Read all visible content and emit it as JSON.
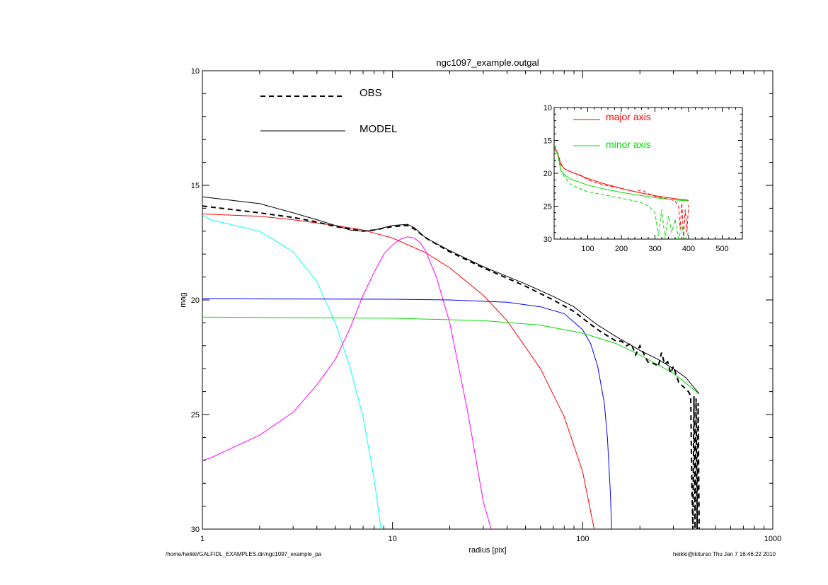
{
  "chart_data": [
    {
      "type": "line",
      "title": "ngc1097_example.outgal",
      "xlabel": "radius [pix]",
      "ylabel": "mag",
      "x_scale": "log",
      "xlim": [
        1,
        1000
      ],
      "ylim": [
        30,
        10
      ],
      "y_inverted": true,
      "x_ticks": [
        1,
        10,
        100,
        1000
      ],
      "x_tick_labels": [
        "1",
        "10",
        "100",
        "1000"
      ],
      "y_ticks": [
        10,
        15,
        20,
        25,
        30
      ],
      "y_tick_labels": [
        "10",
        "15",
        "20",
        "25",
        "30"
      ],
      "legend_position": "top-left",
      "colors": {
        "obs": "#000000",
        "model": "#000000",
        "red": "#ff0000",
        "cyan": "#00ffff",
        "magenta": "#ff00ff",
        "blue": "#0000ff",
        "green": "#00dd00"
      },
      "series": [
        {
          "name": "OBS",
          "style": "dashed",
          "color": "#000000",
          "width": 2,
          "x": [
            1,
            2,
            3,
            4,
            5,
            6,
            7,
            8,
            10,
            12,
            13,
            15,
            20,
            30,
            50,
            70,
            90,
            100,
            120,
            150,
            160,
            170,
            180,
            190,
            200,
            220,
            240,
            250,
            260,
            270,
            280,
            290,
            300,
            320,
            340,
            360,
            370,
            375,
            380,
            385,
            390,
            395,
            400,
            405,
            410
          ],
          "y": [
            15.9,
            16.2,
            16.4,
            16.6,
            16.8,
            16.9,
            17.0,
            16.95,
            16.8,
            16.75,
            16.9,
            17.3,
            17.9,
            18.6,
            19.4,
            20.0,
            20.5,
            20.8,
            21.3,
            21.8,
            21.8,
            22.0,
            21.9,
            22.4,
            22.0,
            22.7,
            22.8,
            22.9,
            22.3,
            22.8,
            22.7,
            23.2,
            22.9,
            23.6,
            23.8,
            24.0,
            24.2,
            28.0,
            30.0,
            24.2,
            30.0,
            24.3,
            30.0,
            24.5,
            30.0
          ]
        },
        {
          "name": "MODEL",
          "style": "solid",
          "color": "#000000",
          "width": 1,
          "x": [
            1,
            2,
            3,
            4,
            5,
            6,
            7,
            8,
            10,
            12,
            13,
            15,
            20,
            30,
            50,
            70,
            90,
            100,
            120,
            150,
            200,
            250,
            300,
            350,
            410
          ],
          "y": [
            15.5,
            15.8,
            16.2,
            16.5,
            16.75,
            16.95,
            17.0,
            16.95,
            16.75,
            16.7,
            16.85,
            17.3,
            17.85,
            18.55,
            19.3,
            19.85,
            20.3,
            20.6,
            21.1,
            21.6,
            22.2,
            22.6,
            23.0,
            23.4,
            24.1
          ]
        },
        {
          "style": "solid",
          "color": "#ff0000",
          "width": 1,
          "x": [
            1,
            2,
            3,
            5,
            7,
            10,
            15,
            20,
            30,
            40,
            60,
            80,
            100,
            115
          ],
          "y": [
            16.25,
            16.35,
            16.5,
            16.75,
            16.95,
            17.3,
            17.95,
            18.6,
            19.8,
            20.9,
            23.0,
            25.1,
            27.5,
            30.0
          ]
        },
        {
          "style": "solid",
          "color": "#00ffff",
          "width": 1,
          "x": [
            1,
            1.1,
            2,
            3,
            4,
            5,
            6,
            7,
            8,
            8.7
          ],
          "y": [
            16.3,
            16.5,
            17.0,
            17.9,
            19.2,
            21.0,
            23.0,
            25.1,
            27.8,
            30.0
          ]
        },
        {
          "style": "solid",
          "color": "#ff00ff",
          "width": 1,
          "x": [
            1,
            1.1,
            2,
            3,
            4,
            5,
            6,
            7,
            8,
            9,
            10,
            11,
            12,
            13,
            14,
            15,
            17,
            20,
            25,
            30,
            33
          ],
          "y": [
            27.0,
            26.9,
            25.9,
            24.9,
            23.7,
            22.6,
            21.2,
            19.8,
            18.8,
            18.0,
            17.6,
            17.35,
            17.25,
            17.3,
            17.5,
            17.9,
            19.0,
            21.0,
            25.0,
            28.8,
            30.0
          ]
        },
        {
          "style": "solid",
          "color": "#0000ff",
          "width": 1,
          "x": [
            1,
            10,
            20,
            40,
            60,
            80,
            100,
            110,
            120,
            130,
            135,
            140,
            142
          ],
          "y": [
            19.95,
            19.97,
            20.0,
            20.1,
            20.3,
            20.6,
            21.3,
            21.9,
            22.9,
            24.5,
            26.0,
            28.5,
            30.0
          ]
        },
        {
          "style": "solid",
          "color": "#00dd00",
          "width": 1,
          "x": [
            1,
            10,
            30,
            60,
            100,
            150,
            200,
            300,
            410
          ],
          "y": [
            20.75,
            20.8,
            20.9,
            21.1,
            21.45,
            21.9,
            22.4,
            23.2,
            24.1
          ]
        }
      ]
    },
    {
      "type": "line",
      "xlim": [
        0,
        560
      ],
      "ylim": [
        30,
        10
      ],
      "y_inverted": true,
      "x_ticks": [
        100,
        200,
        300,
        400,
        500
      ],
      "x_tick_labels": [
        "100",
        "200",
        "300",
        "400",
        "500"
      ],
      "y_ticks": [
        10,
        15,
        20,
        25,
        30
      ],
      "y_tick_labels": [
        "10",
        "15",
        "20",
        "25",
        "30"
      ],
      "legend_position": "top-left",
      "series": [
        {
          "name": "major axis",
          "color": "#ff0000",
          "style": "dashed",
          "x": [
            1,
            10,
            20,
            30,
            50,
            80,
            100,
            150,
            200,
            240,
            260,
            280,
            300,
            320,
            340,
            360,
            370,
            375,
            380,
            385,
            390,
            395,
            400
          ],
          "y": [
            16,
            16.8,
            18.5,
            19.3,
            19.8,
            20.3,
            21.0,
            21.8,
            22.3,
            22.8,
            22.5,
            23.1,
            23.5,
            23.7,
            23.9,
            24.2,
            25.0,
            28.5,
            24.5,
            30.0,
            25.5,
            29.0,
            24.8
          ]
        },
        {
          "name": "",
          "color": "#ff0000",
          "style": "solid",
          "x": [
            1,
            10,
            20,
            30,
            50,
            100,
            150,
            200,
            250,
            300,
            350,
            400
          ],
          "y": [
            16.2,
            16.8,
            18.7,
            19.3,
            19.8,
            20.8,
            21.6,
            22.3,
            22.9,
            23.4,
            23.8,
            24.1
          ]
        },
        {
          "name": "minor axis",
          "color": "#00dd00",
          "style": "dashed",
          "x": [
            1,
            10,
            20,
            30,
            50,
            70,
            100,
            150,
            200,
            250,
            280,
            300,
            310,
            320,
            330,
            340,
            350,
            360,
            370,
            380,
            390,
            400
          ],
          "y": [
            16,
            16.9,
            19.5,
            20.5,
            21.7,
            22.2,
            22.8,
            23.3,
            23.8,
            24.3,
            24.9,
            26.0,
            29.5,
            25.5,
            30.0,
            26.5,
            29.0,
            27.0,
            30.0,
            28.0,
            30.0,
            29.0
          ]
        },
        {
          "name": "",
          "color": "#00dd00",
          "style": "solid",
          "x": [
            1,
            10,
            20,
            30,
            50,
            100,
            150,
            200,
            250,
            300,
            350,
            400
          ],
          "y": [
            16.3,
            17.0,
            19.6,
            20.2,
            20.9,
            21.8,
            22.4,
            22.9,
            23.3,
            23.7,
            24.0,
            24.2
          ]
        }
      ]
    }
  ],
  "footer": {
    "left": "/home/heikki/GALFIDL_EXAMPLES.dir/ngc1097_example_pa",
    "right": "heikki@ikiturso  Thu Jan  7 16:46:22 2010"
  }
}
